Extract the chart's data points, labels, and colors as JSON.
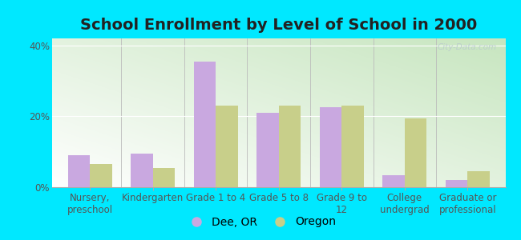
{
  "title": "School Enrollment by Level of School in 2000",
  "categories": [
    "Nursery,\npreschool",
    "Kindergarten",
    "Grade 1 to 4",
    "Grade 5 to 8",
    "Grade 9 to\n12",
    "College\nundergrad",
    "Graduate or\nprofessional"
  ],
  "dee_values": [
    9.0,
    9.5,
    35.5,
    21.0,
    22.5,
    3.5,
    2.0
  ],
  "oregon_values": [
    6.5,
    5.5,
    23.0,
    23.0,
    23.0,
    19.5,
    4.5
  ],
  "dee_color": "#c9a8e0",
  "oregon_color": "#c8cf8a",
  "background_color": "#00e8ff",
  "ylim": [
    0,
    42
  ],
  "yticks": [
    0,
    20,
    40
  ],
  "ytick_labels": [
    "0%",
    "20%",
    "40%"
  ],
  "legend_labels": [
    "Dee, OR",
    "Oregon"
  ],
  "title_fontsize": 14,
  "tick_fontsize": 8.5,
  "legend_fontsize": 10,
  "bar_width": 0.35,
  "watermark": "City-Data.com"
}
